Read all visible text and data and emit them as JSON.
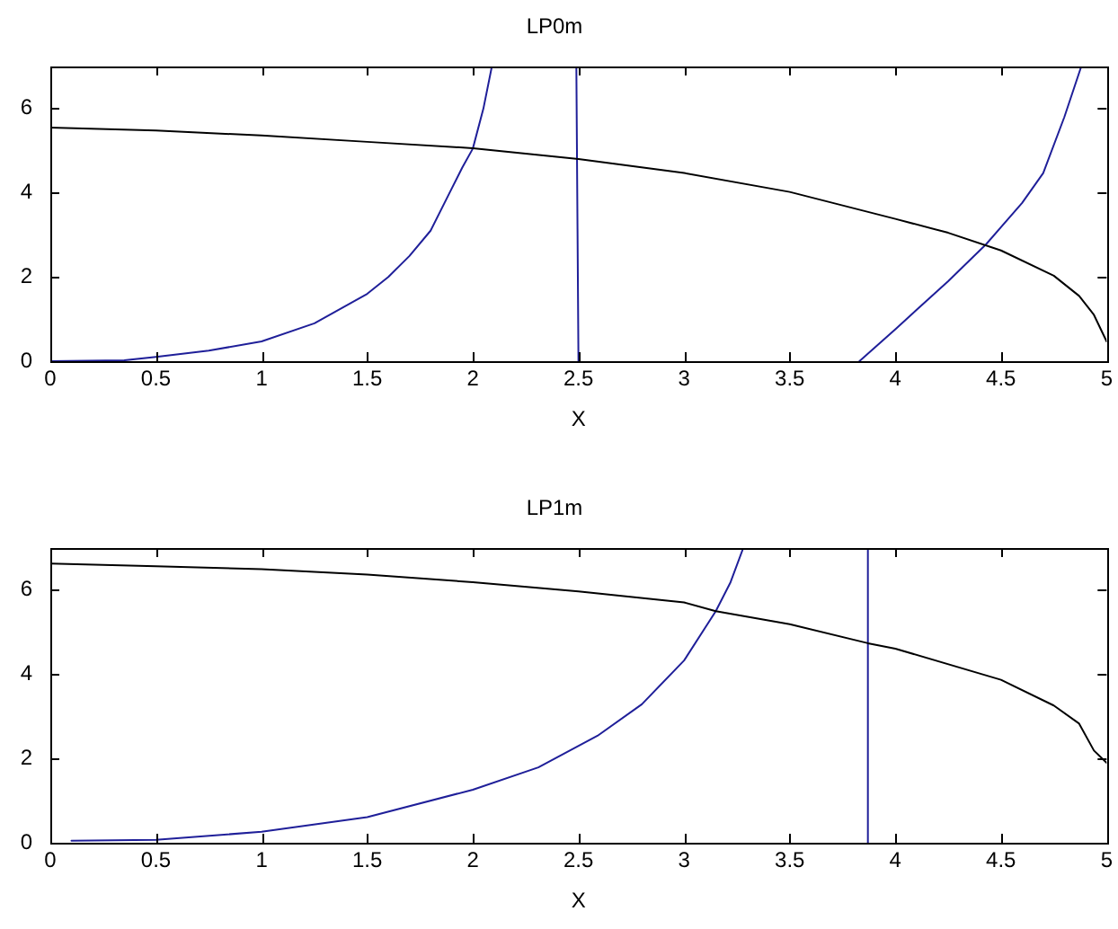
{
  "chart_data": [
    {
      "type": "line",
      "title": "LP0m",
      "xlabel": "X",
      "xlim": [
        0,
        5
      ],
      "xticks": [
        0,
        0.5,
        1,
        1.5,
        2,
        2.5,
        3,
        3.5,
        4,
        4.5,
        5
      ],
      "ylim": [
        0,
        7
      ],
      "yticks": [
        0,
        2,
        4,
        6
      ],
      "series": [
        {
          "color": "#000000",
          "x": [
            0,
            0.5,
            1,
            1.5,
            2,
            2.5,
            3,
            3.5,
            4,
            4.25,
            4.5,
            4.75,
            4.87,
            4.94,
            5
          ],
          "values": [
            5.55,
            5.48,
            5.36,
            5.21,
            5.06,
            4.8,
            4.47,
            4.02,
            3.38,
            3.05,
            2.63,
            2.03,
            1.55,
            1.1,
            0.47
          ]
        },
        {
          "color": "#1f1f99",
          "x": [
            0,
            0.35,
            0.5,
            0.75,
            1,
            1.25,
            1.5,
            1.6,
            1.7,
            1.8,
            1.9,
            1.95,
            2,
            2.05,
            2.09
          ],
          "values": [
            0,
            0.02,
            0.1,
            0.25,
            0.47,
            0.9,
            1.6,
            2,
            2.5,
            3.1,
            4.1,
            4.6,
            5.05,
            6,
            7
          ]
        },
        {
          "color": "#1f1f99",
          "x": [
            2.49,
            2.5
          ],
          "values": [
            7,
            0
          ]
        },
        {
          "color": "#1f1f99",
          "x": [
            3.83,
            4,
            4.25,
            4.43,
            4.6,
            4.7,
            4.8,
            4.88
          ],
          "values": [
            0,
            0.76,
            1.9,
            2.78,
            3.76,
            4.47,
            5.8,
            7
          ]
        }
      ]
    },
    {
      "type": "line",
      "title": "LP1m",
      "xlabel": "X",
      "xlim": [
        0,
        5
      ],
      "xticks": [
        0,
        0.5,
        1,
        1.5,
        2,
        2.5,
        3,
        3.5,
        4,
        4.5,
        5
      ],
      "ylim": [
        0,
        7
      ],
      "yticks": [
        0,
        2,
        4,
        6
      ],
      "series": [
        {
          "color": "#000000",
          "x": [
            0,
            0.5,
            1,
            1.5,
            2,
            2.5,
            3,
            3.15,
            3.5,
            3.87,
            4,
            4.5,
            4.75,
            4.87,
            4.94,
            5
          ],
          "values": [
            6.63,
            6.57,
            6.5,
            6.37,
            6.19,
            5.97,
            5.71,
            5.5,
            5.19,
            4.74,
            4.61,
            3.87,
            3.26,
            2.83,
            2.19,
            1.9
          ]
        },
        {
          "color": "#1f1f99",
          "x": [
            0.1,
            0.5,
            1,
            1.5,
            2,
            2.31,
            2.59,
            2.8,
            3,
            3.15,
            3.22,
            3.28
          ],
          "values": [
            0.05,
            0.07,
            0.26,
            0.61,
            1.26,
            1.79,
            2.54,
            3.29,
            4.33,
            5.5,
            6.19,
            7
          ]
        },
        {
          "color": "#1f1f99",
          "x": [
            3.87,
            3.87
          ],
          "values": [
            7,
            0
          ]
        }
      ]
    }
  ]
}
